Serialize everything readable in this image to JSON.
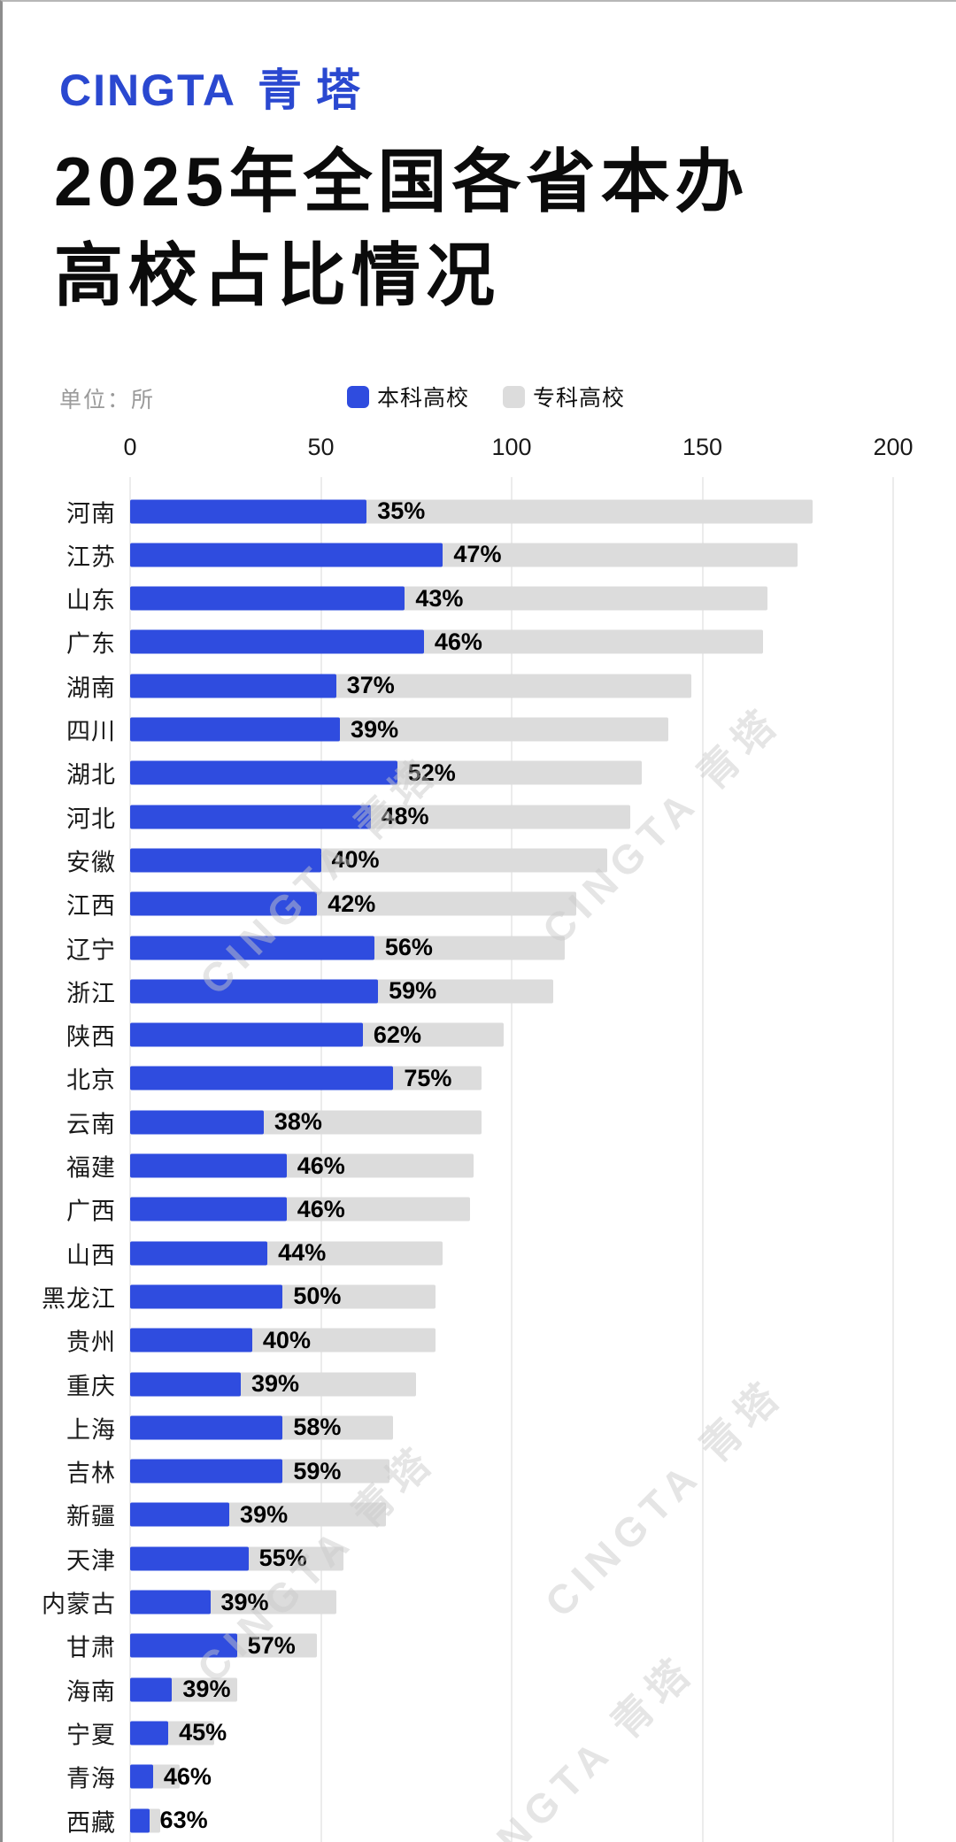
{
  "branding": {
    "logo_en": "CINGTA",
    "logo_cn": "青塔",
    "logo_color": "#2A48D0"
  },
  "title": {
    "line1": "2025年全国各省本办",
    "line2": "高校占比情况"
  },
  "meta": {
    "unit_label": "单位：所"
  },
  "watermark": {
    "text": "CINGTA 青塔"
  },
  "colors": {
    "benke_blue": "#2F4CDF",
    "zhuanke_gray": "#DCDCDC",
    "gridline": "#ECECEC"
  },
  "chart_data": {
    "type": "bar",
    "orientation": "horizontal",
    "stacked": true,
    "title": "2025年全国各省本办高校占比情况",
    "unit": "所",
    "xlim": [
      0,
      200
    ],
    "xticks": [
      0,
      50,
      100,
      150,
      200
    ],
    "grid": "vertical",
    "legend_position": "top",
    "categories": [
      "河南",
      "江苏",
      "山东",
      "广东",
      "湖南",
      "四川",
      "湖北",
      "河北",
      "安徽",
      "江西",
      "辽宁",
      "浙江",
      "陕西",
      "北京",
      "云南",
      "福建",
      "广西",
      "山西",
      "黑龙江",
      "贵州",
      "重庆",
      "上海",
      "吉林",
      "新疆",
      "天津",
      "内蒙古",
      "甘肃",
      "海南",
      "宁夏",
      "青海",
      "西藏"
    ],
    "series": [
      {
        "name": "本科高校",
        "color": "#2F4CDF",
        "values": [
          62,
          82,
          72,
          77,
          54,
          55,
          70,
          63,
          50,
          49,
          64,
          65,
          61,
          69,
          35,
          41,
          41,
          36,
          40,
          32,
          29,
          40,
          40,
          26,
          31,
          21,
          28,
          11,
          10,
          6,
          5
        ]
      },
      {
        "name": "专科高校",
        "color": "#DCDCDC",
        "values": [
          117,
          93,
          95,
          89,
          93,
          86,
          64,
          68,
          75,
          68,
          50,
          46,
          37,
          23,
          57,
          49,
          48,
          46,
          40,
          48,
          46,
          29,
          28,
          41,
          25,
          33,
          21,
          17,
          12,
          7,
          3
        ]
      }
    ],
    "bar_labels": [
      "35%",
      "47%",
      "43%",
      "46%",
      "37%",
      "39%",
      "52%",
      "48%",
      "40%",
      "42%",
      "56%",
      "59%",
      "62%",
      "75%",
      "38%",
      "46%",
      "46%",
      "44%",
      "50%",
      "40%",
      "39%",
      "58%",
      "59%",
      "39%",
      "55%",
      "39%",
      "57%",
      "39%",
      "45%",
      "46%",
      "63%"
    ],
    "bar_label_meaning": "本科高校占比"
  }
}
